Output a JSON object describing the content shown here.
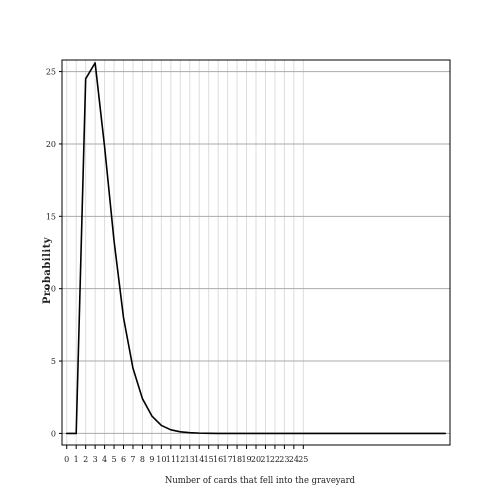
{
  "chart_data": {
    "type": "line",
    "title": "",
    "xlabel": "Number of cards that fell into the graveyard",
    "ylabel": "Probability",
    "xlim": [
      -0.5,
      40.5
    ],
    "ylim": [
      -0.8,
      25.8
    ],
    "x_ticks": [
      0,
      1,
      2,
      3,
      4,
      5,
      6,
      7,
      8,
      9,
      10,
      11,
      12,
      13,
      14,
      15,
      16,
      17,
      18,
      19,
      20,
      21,
      22,
      23,
      24,
      25
    ],
    "x_tick_labels": [
      "0",
      "1",
      "2",
      "3",
      "4",
      "5",
      "6",
      "7",
      "8",
      "9",
      "10",
      "11",
      "12",
      "13",
      "14",
      "15",
      "16",
      "17",
      "18",
      "19",
      "20",
      "21",
      "22",
      "23",
      "24",
      "25"
    ],
    "y_ticks": [
      0,
      5,
      10,
      15,
      20,
      25
    ],
    "y_tick_labels": [
      "0",
      "5",
      "10",
      "15",
      "20",
      "25"
    ],
    "vertical_grid": true,
    "horizontal_grid": true,
    "legend": "none",
    "line_color": "#000000",
    "grid_color": "#bbbbbb",
    "series": [
      {
        "x": [
          0,
          1,
          2,
          3,
          4,
          5,
          6,
          7,
          8,
          9,
          10,
          11,
          12,
          13,
          14,
          15,
          16,
          17,
          18,
          19,
          20,
          21,
          22,
          23,
          24,
          25,
          26,
          27,
          28,
          29,
          30,
          31,
          32,
          33,
          34,
          35,
          36,
          37,
          38,
          39,
          40
        ],
        "values": [
          0,
          0,
          24.5,
          25.6,
          19.8,
          13.3,
          8.0,
          4.5,
          2.4,
          1.2,
          0.55,
          0.25,
          0.11,
          0.05,
          0.02,
          0.01,
          0,
          0,
          0,
          0,
          0,
          0,
          0,
          0,
          0,
          0,
          0,
          0,
          0,
          0,
          0,
          0,
          0,
          0,
          0,
          0,
          0,
          0,
          0,
          0,
          0
        ]
      }
    ]
  }
}
